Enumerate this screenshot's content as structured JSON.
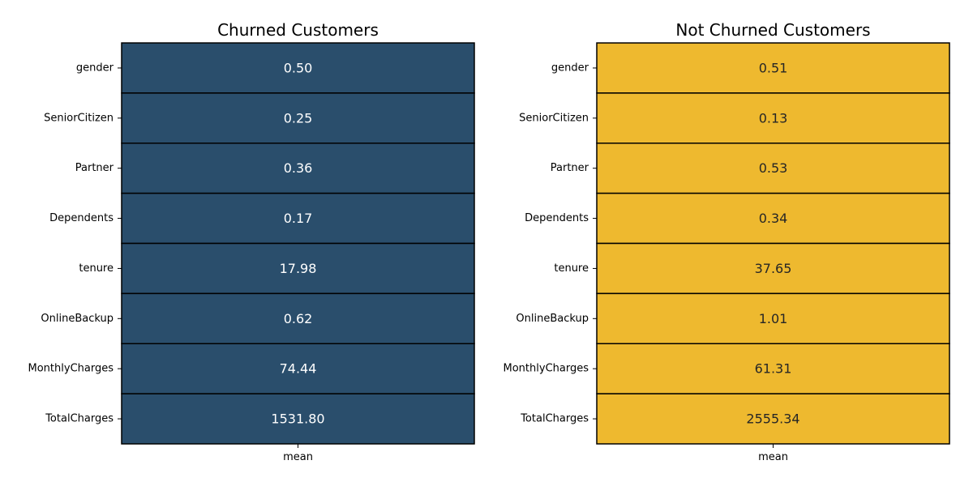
{
  "chart_data": [
    {
      "type": "heatmap",
      "title": "Churned Customers",
      "x_categories": [
        "mean"
      ],
      "y_categories": [
        "gender",
        "SeniorCitizen",
        "Partner",
        "Dependents",
        "tenure",
        "OnlineBackup",
        "MonthlyCharges",
        "TotalCharges"
      ],
      "values": [
        0.5,
        0.25,
        0.36,
        0.17,
        17.98,
        0.62,
        74.44,
        1531.8
      ],
      "value_labels": [
        "0.50",
        "0.25",
        "0.36",
        "0.17",
        "17.98",
        "0.62",
        "74.44",
        "1531.80"
      ],
      "cell_color": "#2a4e6c",
      "text_color": "#ffffff",
      "grid_line_color": "#000000",
      "legend": "none"
    },
    {
      "type": "heatmap",
      "title": "Not Churned Customers",
      "x_categories": [
        "mean"
      ],
      "y_categories": [
        "gender",
        "SeniorCitizen",
        "Partner",
        "Dependents",
        "tenure",
        "OnlineBackup",
        "MonthlyCharges",
        "TotalCharges"
      ],
      "values": [
        0.51,
        0.13,
        0.53,
        0.34,
        37.65,
        1.01,
        61.31,
        2555.34
      ],
      "value_labels": [
        "0.51",
        "0.13",
        "0.53",
        "0.34",
        "37.65",
        "1.01",
        "61.31",
        "2555.34"
      ],
      "cell_color": "#eeb92f",
      "text_color": "#262626",
      "grid_line_color": "#000000",
      "legend": "none"
    }
  ]
}
